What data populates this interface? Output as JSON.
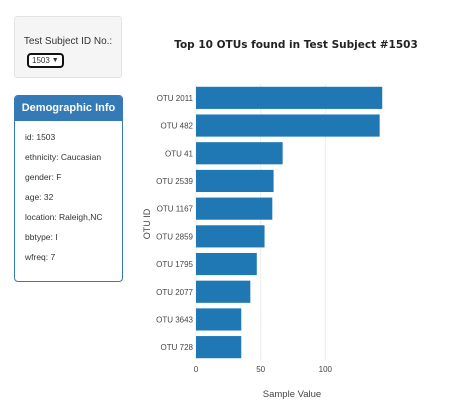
{
  "selector": {
    "label": "Test Subject ID No.:",
    "value": "1503"
  },
  "demographics": {
    "title": "Demographic Info",
    "rows": [
      "id: 1503",
      "ethnicity: Caucasian",
      "gender: F",
      "age: 32",
      "location: Raleigh,NC",
      "bbtype: I",
      "wfreq: 7"
    ]
  },
  "colors": {
    "bar": "#1f77b4",
    "panel": "#337ab7"
  },
  "chart_data": {
    "type": "bar",
    "orientation": "horizontal",
    "title": "Top 10 OTUs found in Test Subject #1503",
    "xlabel": "Sample Value",
    "ylabel": "OTU ID",
    "categories": [
      "OTU 728",
      "OTU 3643",
      "OTU 2077",
      "OTU 1795",
      "OTU 2859",
      "OTU 1167",
      "OTU 2539",
      "OTU 41",
      "OTU 482",
      "OTU 2011"
    ],
    "values": [
      35,
      35,
      42,
      47,
      53,
      59,
      60,
      67,
      142,
      144
    ],
    "xlim": [
      0,
      150
    ],
    "xticks": [
      0,
      50,
      100
    ],
    "grid": true
  }
}
